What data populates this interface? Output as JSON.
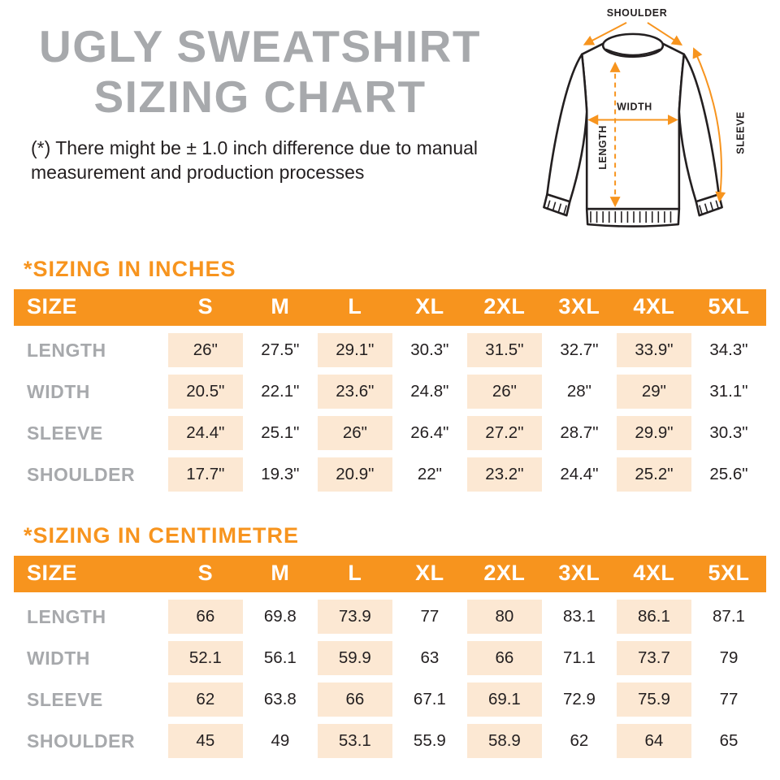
{
  "header": {
    "title_line1": "UGLY SWEATSHIRT",
    "title_line2": "SIZING CHART",
    "disclaimer": "(*) There might be ± 1.0 inch difference due to manual measurement and production processes"
  },
  "diagram": {
    "labels": {
      "shoulder": "SHOULDER",
      "width": "WIDTH",
      "length": "LENGTH",
      "sleeve": "SLEEVE"
    }
  },
  "colors": {
    "accent_orange": "#F7941E",
    "shade_peach": "#FCE8D3",
    "title_gray": "#A7A9AC",
    "text_dark": "#231F20"
  },
  "chart_data": [
    {
      "type": "table",
      "title": "*SIZING IN INCHES",
      "columns": [
        "SIZE",
        "S",
        "M",
        "L",
        "XL",
        "2XL",
        "3XL",
        "4XL",
        "5XL"
      ],
      "rows": [
        {
          "label": "LENGTH",
          "values": [
            "26\"",
            "27.5\"",
            "29.1\"",
            "30.3\"",
            "31.5\"",
            "32.7\"",
            "33.9\"",
            "34.3\""
          ]
        },
        {
          "label": "WIDTH",
          "values": [
            "20.5\"",
            "22.1\"",
            "23.6\"",
            "24.8\"",
            "26\"",
            "28\"",
            "29\"",
            "31.1\""
          ]
        },
        {
          "label": "SLEEVE",
          "values": [
            "24.4\"",
            "25.1\"",
            "26\"",
            "26.4\"",
            "27.2\"",
            "28.7\"",
            "29.9\"",
            "30.3\""
          ]
        },
        {
          "label": "SHOULDER",
          "values": [
            "17.7\"",
            "19.3\"",
            "20.9\"",
            "22\"",
            "23.2\"",
            "24.4\"",
            "25.2\"",
            "25.6\""
          ]
        }
      ]
    },
    {
      "type": "table",
      "title": "*SIZING IN CENTIMETRE",
      "columns": [
        "SIZE",
        "S",
        "M",
        "L",
        "XL",
        "2XL",
        "3XL",
        "4XL",
        "5XL"
      ],
      "rows": [
        {
          "label": "LENGTH",
          "values": [
            "66",
            "69.8",
            "73.9",
            "77",
            "80",
            "83.1",
            "86.1",
            "87.1"
          ]
        },
        {
          "label": "WIDTH",
          "values": [
            "52.1",
            "56.1",
            "59.9",
            "63",
            "66",
            "71.1",
            "73.7",
            "79"
          ]
        },
        {
          "label": "SLEEVE",
          "values": [
            "62",
            "63.8",
            "66",
            "67.1",
            "69.1",
            "72.9",
            "75.9",
            "77"
          ]
        },
        {
          "label": "SHOULDER",
          "values": [
            "45",
            "49",
            "53.1",
            "55.9",
            "58.9",
            "62",
            "64",
            "65"
          ]
        }
      ]
    }
  ]
}
